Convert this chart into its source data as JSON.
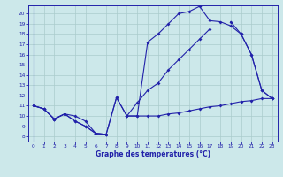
{
  "title": "Graphe des températures (°C)",
  "bg_color": "#cce8ea",
  "grid_color": "#aacccc",
  "line_color": "#2222aa",
  "xlim": [
    -0.5,
    23.5
  ],
  "ylim": [
    7.5,
    20.8
  ],
  "xticks": [
    0,
    1,
    2,
    3,
    4,
    5,
    6,
    7,
    8,
    9,
    10,
    11,
    12,
    13,
    14,
    15,
    16,
    17,
    18,
    19,
    20,
    21,
    22,
    23
  ],
  "yticks": [
    8,
    9,
    10,
    11,
    12,
    13,
    14,
    15,
    16,
    17,
    18,
    19,
    20
  ],
  "hours": [
    0,
    1,
    2,
    3,
    4,
    5,
    6,
    7,
    8,
    9,
    10,
    11,
    12,
    13,
    14,
    15,
    16,
    17,
    18,
    19,
    20,
    21,
    22,
    23
  ],
  "line1": [
    11.0,
    10.7,
    9.7,
    10.2,
    9.5,
    9.0,
    8.3,
    8.2,
    null,
    null,
    null,
    null,
    null,
    null,
    null,
    null,
    null,
    null,
    null,
    null,
    null,
    null,
    null,
    null
  ],
  "line1b": [
    null,
    null,
    null,
    null,
    null,
    null,
    null,
    null,
    11.8,
    10.0,
    10.0,
    10.0,
    10.0,
    10.2,
    10.3,
    10.5,
    10.7,
    10.9,
    11.0,
    11.2,
    11.4,
    11.5,
    11.7,
    11.7
  ],
  "line_main": [
    11.0,
    10.7,
    9.7,
    10.2,
    9.5,
    9.0,
    8.3,
    8.2,
    11.8,
    10.0,
    10.0,
    17.2,
    18.0,
    19.0,
    20.0,
    20.2,
    20.7,
    19.3,
    19.2,
    18.8,
    null,
    null,
    null,
    null
  ],
  "line_main2": [
    null,
    null,
    null,
    null,
    null,
    null,
    null,
    null,
    null,
    null,
    null,
    null,
    null,
    null,
    null,
    null,
    null,
    null,
    null,
    18.8,
    18.0,
    16.0,
    12.5,
    11.7
  ],
  "line_upper": [
    11.0,
    10.7,
    9.7,
    10.2,
    null,
    null,
    null,
    null,
    null,
    null,
    11.3,
    12.5,
    13.2,
    14.5,
    15.5,
    16.5,
    17.5,
    null,
    null,
    null,
    null,
    null,
    null,
    null
  ],
  "line_upper2": [
    null,
    null,
    null,
    null,
    null,
    null,
    null,
    null,
    null,
    null,
    null,
    null,
    null,
    null,
    null,
    null,
    17.5,
    18.5,
    null,
    19.2,
    18.0,
    16.0,
    12.5,
    11.7
  ],
  "curve_main": [
    11.0,
    10.7,
    9.7,
    10.2,
    9.5,
    9.0,
    8.3,
    8.2,
    11.8,
    10.0,
    10.0,
    17.2,
    18.0,
    19.0,
    20.0,
    20.2,
    20.7,
    19.3,
    19.2,
    18.8,
    18.0,
    16.0,
    12.5,
    11.7
  ],
  "curve_upper": [
    11.0,
    10.7,
    9.7,
    10.2,
    10.0,
    9.5,
    8.3,
    8.2,
    null,
    10.0,
    11.3,
    12.5,
    13.2,
    14.5,
    15.5,
    16.5,
    17.5,
    18.5,
    null,
    19.2,
    18.0,
    16.0,
    12.5,
    11.7
  ],
  "curve_low": [
    11.0,
    10.7,
    9.7,
    10.2,
    9.5,
    9.0,
    8.3,
    8.2,
    11.8,
    10.0,
    10.0,
    10.0,
    10.0,
    10.2,
    10.3,
    10.5,
    10.7,
    10.9,
    11.0,
    11.2,
    11.4,
    11.5,
    11.7,
    11.7
  ]
}
